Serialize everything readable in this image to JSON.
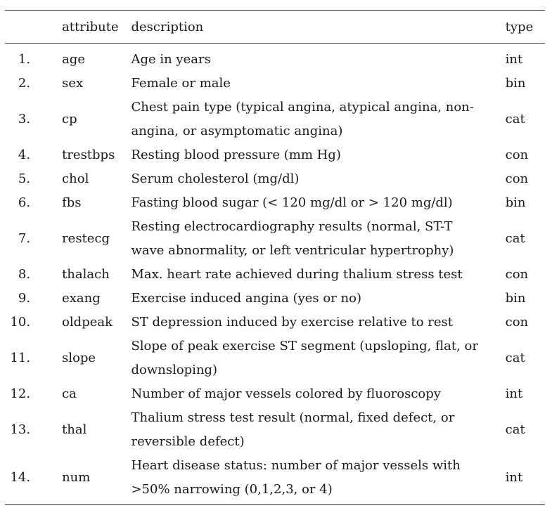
{
  "table": {
    "headers": {
      "index": "",
      "attribute": "attribute",
      "description": "description",
      "type": "type"
    },
    "rows": [
      {
        "index": "1.",
        "attribute": "age",
        "description": "Age in years",
        "type": "int"
      },
      {
        "index": "2.",
        "attribute": "sex",
        "description": "Female or male",
        "type": "bin"
      },
      {
        "index": "3.",
        "attribute": "cp",
        "description_lines": [
          "Chest pain type (typical angina, atypical angina, non-",
          "angina, or asymptomatic angina)"
        ],
        "type": "cat"
      },
      {
        "index": "4.",
        "attribute": "trestbps",
        "description": "Resting blood pressure (mm Hg)",
        "type": "con"
      },
      {
        "index": "5.",
        "attribute": "chol",
        "description": "Serum cholesterol (mg/dl)",
        "type": "con"
      },
      {
        "index": "6.",
        "attribute": "fbs",
        "description": "Fasting blood sugar (< 120 mg/dl or > 120 mg/dl)",
        "type": "bin"
      },
      {
        "index": "7.",
        "attribute": "restecg",
        "description_lines": [
          "Resting electrocardiography results (normal, ST-T",
          "wave abnormality, or left ventricular hypertrophy)"
        ],
        "type": "cat"
      },
      {
        "index": "8.",
        "attribute": "thalach",
        "description": "Max. heart rate achieved during thalium stress test",
        "type": "con"
      },
      {
        "index": "9.",
        "attribute": "exang",
        "description": "Exercise induced angina (yes or no)",
        "type": "bin"
      },
      {
        "index": "10.",
        "attribute": "oldpeak",
        "description": "ST depression induced by exercise relative to rest",
        "type": "con"
      },
      {
        "index": "11.",
        "attribute": "slope",
        "description_lines": [
          "Slope of peak exercise ST segment (upsloping, flat, or",
          "downsloping)"
        ],
        "type": "cat"
      },
      {
        "index": "12.",
        "attribute": "ca",
        "description": "Number of major vessels colored by fluoroscopy",
        "type": "int"
      },
      {
        "index": "13.",
        "attribute": "thal",
        "description_lines": [
          "Thalium stress test result (normal, fixed defect, or",
          "reversible defect)"
        ],
        "type": "cat"
      },
      {
        "index": "14.",
        "attribute": "num",
        "description_lines": [
          "Heart disease status: number of major vessels with",
          ">50% narrowing (0,1,2,3, or 4)"
        ],
        "type": "int"
      }
    ]
  }
}
